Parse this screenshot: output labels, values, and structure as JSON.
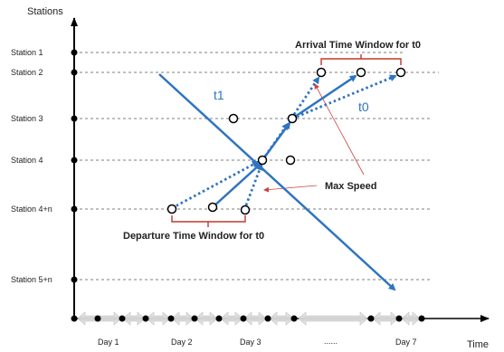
{
  "axes": {
    "y_title": "Stations",
    "x_title": "Time"
  },
  "stations": [
    "Station 1",
    "Station 2",
    "Station 3",
    "Station 4",
    "Station 4+n",
    "Station 5+n"
  ],
  "days": [
    "Day 1",
    "Day 2",
    "Day 3",
    "......",
    "Day 7"
  ],
  "annotations": {
    "arrival_window": "Arrival Time Window for t0",
    "departure_window": "Departure Time Window for t0",
    "max_speed": "Max Speed"
  },
  "trains": {
    "t1": "t1",
    "t0": "t0"
  },
  "colors": {
    "train_line": "#2f74c0",
    "bracket": "#c0392b",
    "pointer": "#d04040",
    "axis": "#000000",
    "grid": "#555555"
  }
}
